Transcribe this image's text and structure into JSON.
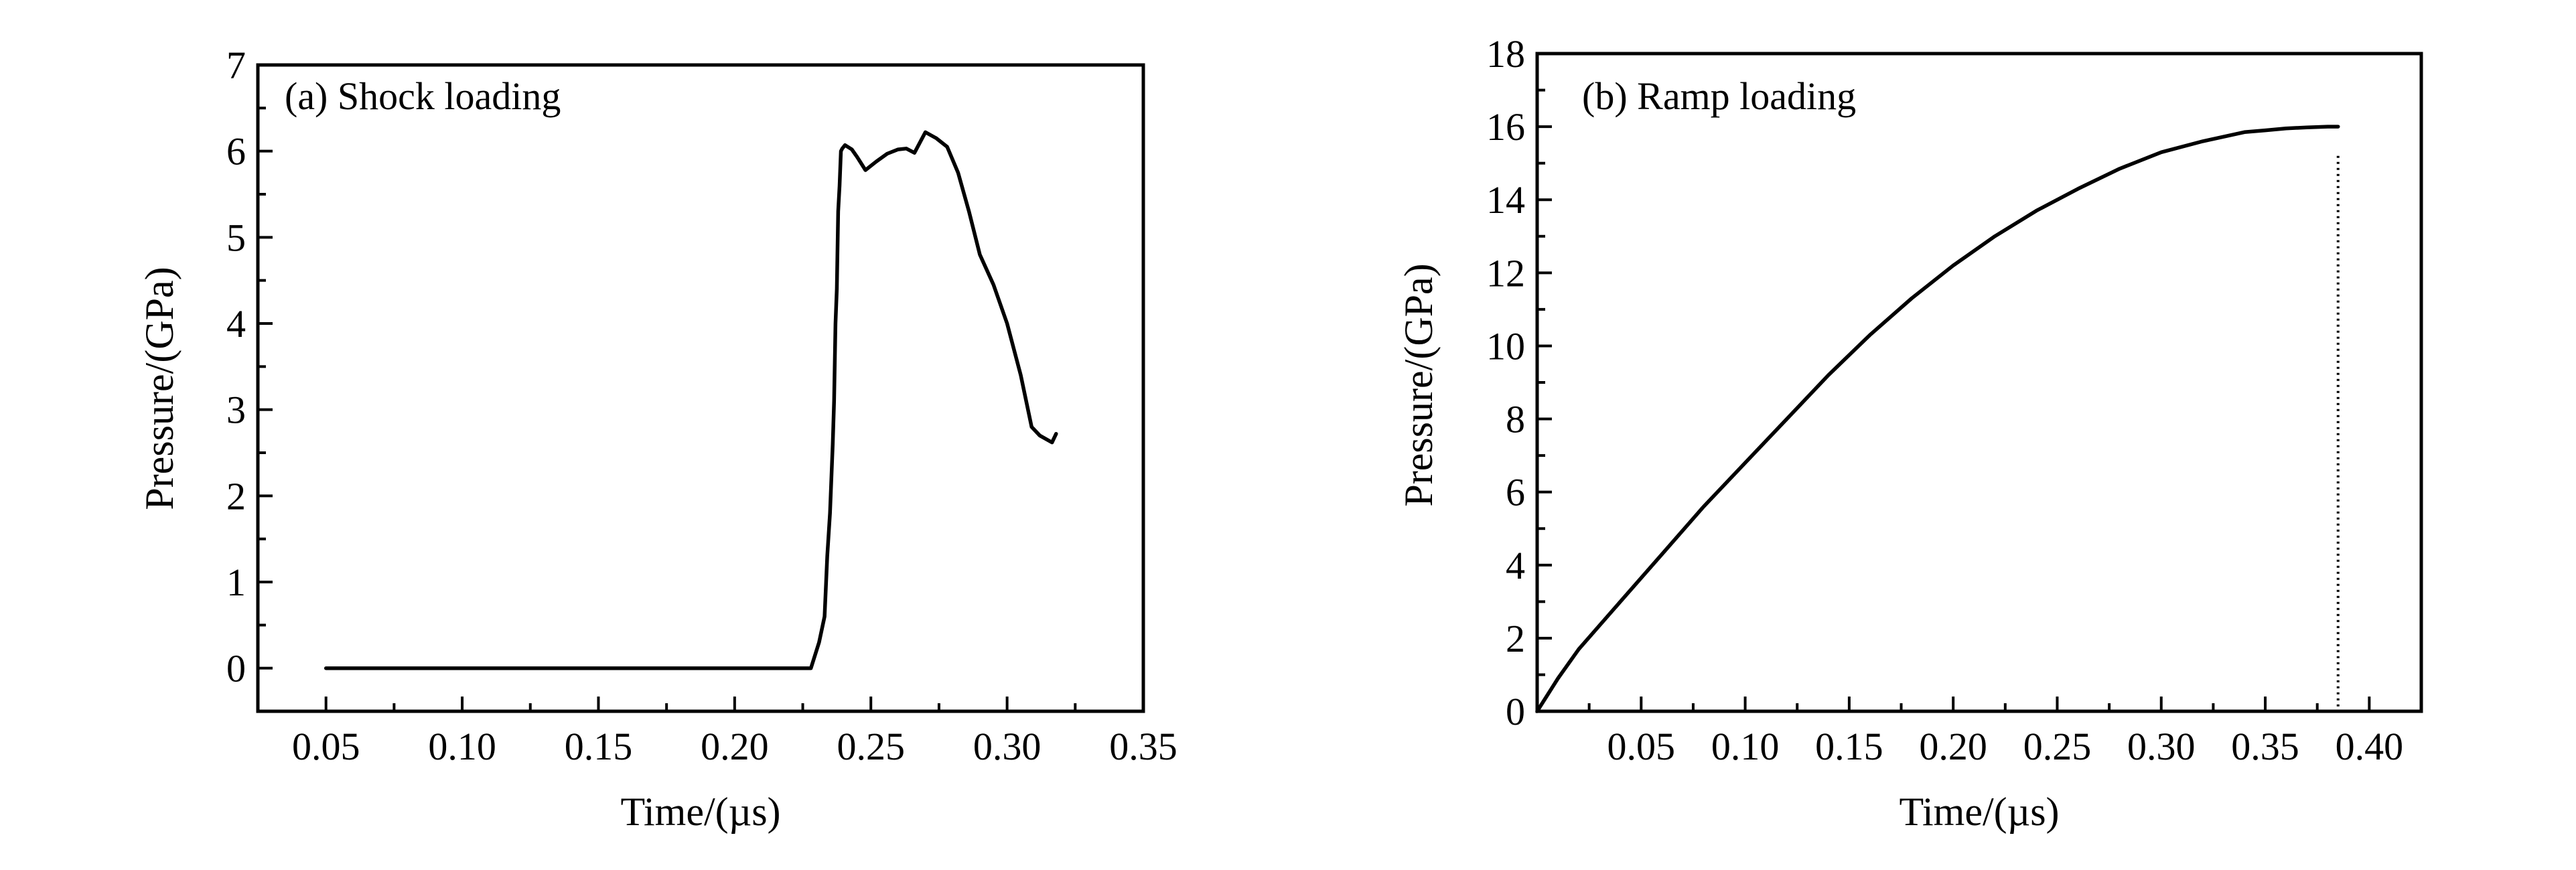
{
  "chart_data": [
    {
      "type": "line",
      "title": "(a) Shock loading",
      "xlabel": "Time/(µs)",
      "ylabel": "Pressure/(GPa)",
      "xlim": [
        0.025,
        0.35
      ],
      "ylim": [
        -0.5,
        7
      ],
      "xticks": [
        0.05,
        0.1,
        0.15,
        0.2,
        0.25,
        0.3,
        0.35
      ],
      "xtick_labels": [
        "0.05",
        "0.10",
        "0.15",
        "0.20",
        "0.25",
        "0.30",
        "0.35"
      ],
      "yticks": [
        0,
        1,
        2,
        3,
        4,
        5,
        6,
        7
      ],
      "ytick_labels": [
        "0",
        "1",
        "2",
        "3",
        "4",
        "5",
        "6",
        "7"
      ],
      "grid": false,
      "series": [
        {
          "x": [
            0.05,
            0.1,
            0.15,
            0.2,
            0.228,
            0.231,
            0.233,
            0.234,
            0.235,
            0.236,
            0.2365,
            0.237,
            0.2375,
            0.238,
            0.2385,
            0.239,
            0.2395,
            0.2405,
            0.243,
            0.245,
            0.248,
            0.252,
            0.256,
            0.26,
            0.263,
            0.266,
            0.27,
            0.274,
            0.278,
            0.282,
            0.286,
            0.29,
            0.295,
            0.3,
            0.305,
            0.309,
            0.312,
            0.3165,
            0.318
          ],
          "y": [
            0,
            0,
            0,
            0,
            0,
            0.3,
            0.6,
            1.3,
            1.8,
            2.6,
            3.1,
            4.0,
            4.4,
            5.3,
            5.6,
            6.0,
            6.03,
            6.07,
            6.02,
            5.93,
            5.78,
            5.88,
            5.97,
            6.02,
            6.03,
            5.98,
            6.22,
            6.15,
            6.05,
            5.75,
            5.3,
            4.8,
            4.45,
            4.0,
            3.4,
            2.8,
            2.7,
            2.62,
            2.72
          ]
        }
      ]
    },
    {
      "type": "line",
      "title": "(b) Ramp loading",
      "xlabel": "Time/(µs)",
      "ylabel": "Pressure/(GPa)",
      "xlim": [
        0.0,
        0.425
      ],
      "ylim": [
        0,
        18
      ],
      "xticks": [
        0.05,
        0.1,
        0.15,
        0.2,
        0.25,
        0.3,
        0.35,
        0.4
      ],
      "xtick_labels": [
        "0.05",
        "0.10",
        "0.15",
        "0.20",
        "0.25",
        "0.30",
        "0.35",
        "0.40"
      ],
      "yticks": [
        0,
        2,
        4,
        6,
        8,
        10,
        12,
        14,
        16,
        18
      ],
      "ytick_labels": [
        "0",
        "2",
        "4",
        "6",
        "8",
        "10",
        "12",
        "14",
        "16",
        "18"
      ],
      "grid": false,
      "vertical_line_x": 0.385,
      "series": [
        {
          "x": [
            0.0,
            0.01,
            0.02,
            0.04,
            0.06,
            0.08,
            0.1,
            0.12,
            0.14,
            0.16,
            0.18,
            0.2,
            0.22,
            0.24,
            0.26,
            0.28,
            0.3,
            0.32,
            0.34,
            0.35,
            0.36,
            0.37,
            0.38,
            0.385
          ],
          "y": [
            0,
            0.9,
            1.7,
            3.0,
            4.3,
            5.6,
            6.8,
            8.0,
            9.2,
            10.3,
            11.3,
            12.2,
            13.0,
            13.7,
            14.3,
            14.85,
            15.3,
            15.6,
            15.85,
            15.9,
            15.95,
            15.98,
            16.0,
            16.0
          ]
        }
      ]
    }
  ]
}
